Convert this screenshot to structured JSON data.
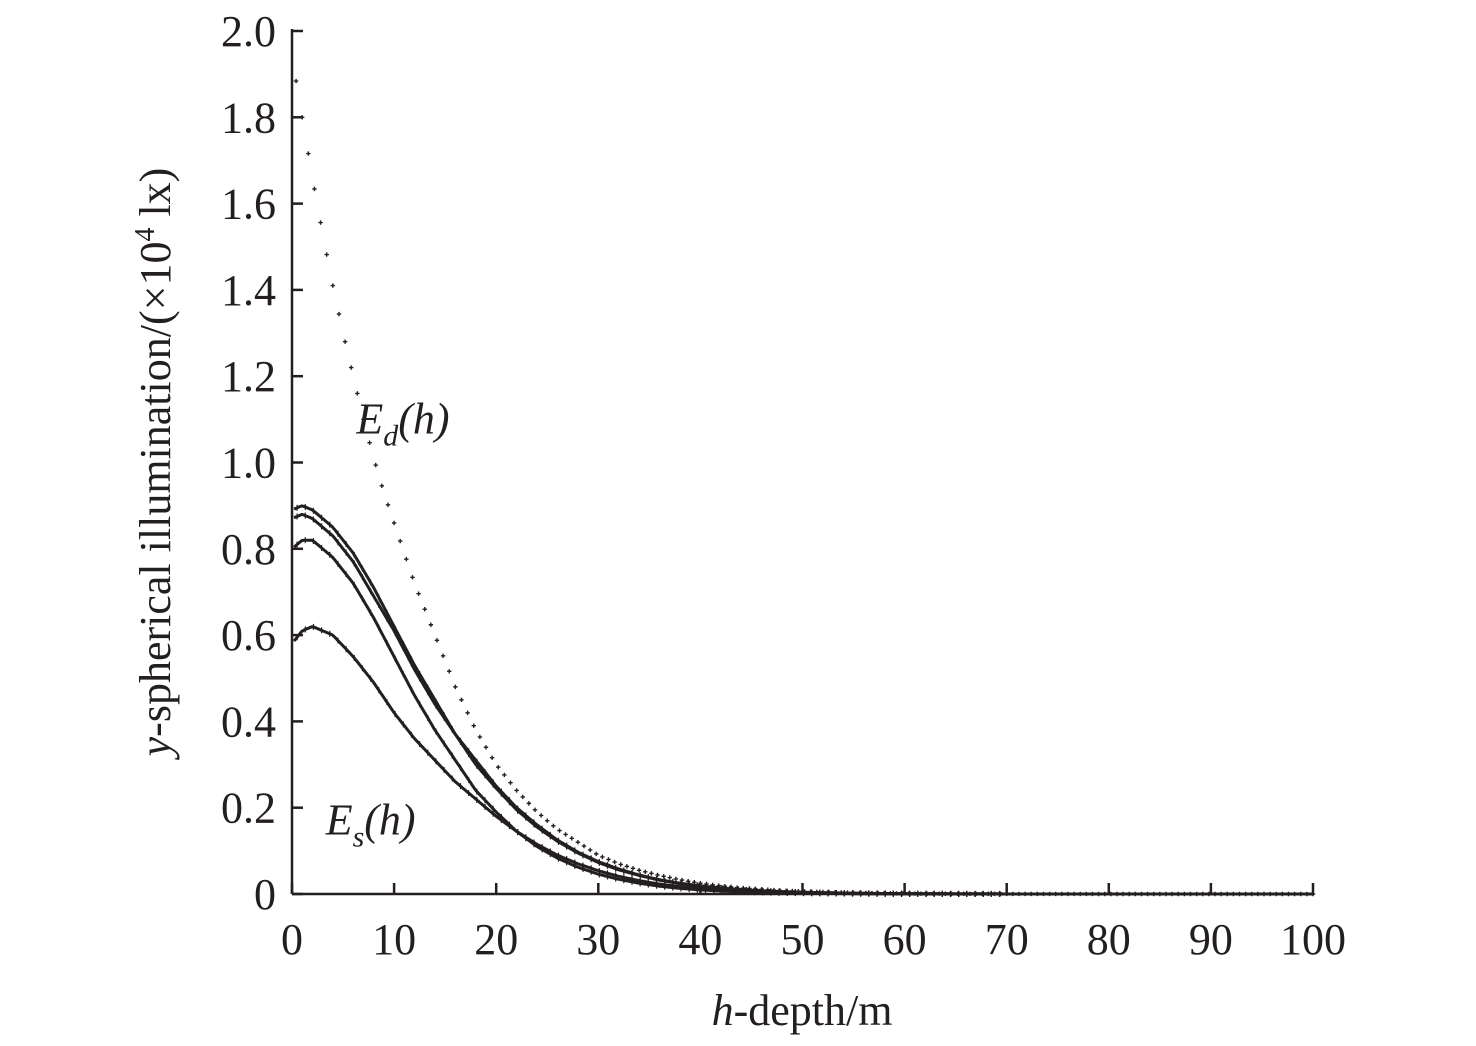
{
  "chart_data": {
    "type": "scatter",
    "title": "",
    "xlabel": {
      "italic": "h",
      "rest": "-depth/m"
    },
    "ylabel": {
      "italic": "y",
      "rest": "-spherical illumination/(×10",
      "sup": "4",
      "unit": " lx)"
    },
    "xlim": [
      0,
      100
    ],
    "ylim": [
      0,
      2.0
    ],
    "xticks": [
      "0",
      "10",
      "20",
      "30",
      "40",
      "50",
      "60",
      "70",
      "80",
      "90",
      "100"
    ],
    "yticks": [
      "0",
      "0.2",
      "0.4",
      "0.6",
      "0.8",
      "1.0",
      "1.2",
      "1.4",
      "1.6",
      "1.8",
      "2.0"
    ],
    "grid": false,
    "annotations": [
      {
        "main": "E",
        "sub": "d",
        "rest": "(h)",
        "x": 6.3,
        "y": 1.1
      },
      {
        "main": "E",
        "sub": "s",
        "rest": "(h)",
        "x": 3.3,
        "y": 0.17
      }
    ],
    "series": [
      {
        "marker": "+",
        "x": [
          0,
          1,
          2,
          3,
          4,
          5,
          6,
          7,
          8,
          9,
          10,
          11,
          12,
          13,
          14,
          15,
          16,
          17,
          18,
          19,
          20,
          22,
          24,
          26,
          28,
          30,
          32,
          34,
          36,
          38,
          40,
          42,
          44,
          46,
          48,
          50,
          55,
          60,
          65,
          70,
          75,
          80,
          85,
          90,
          95,
          100
        ],
        "y": [
          1.94,
          1.8,
          1.66,
          1.53,
          1.41,
          1.3,
          1.2,
          1.1,
          1.01,
          0.93,
          0.86,
          0.79,
          0.72,
          0.66,
          0.6,
          0.54,
          0.48,
          0.43,
          0.38,
          0.34,
          0.3,
          0.24,
          0.19,
          0.15,
          0.12,
          0.09,
          0.07,
          0.055,
          0.043,
          0.033,
          0.025,
          0.019,
          0.014,
          0.011,
          0.008,
          0.006,
          0.003,
          0.001,
          0.0005,
          0.0002,
          0.0001,
          0,
          0,
          0,
          0,
          0
        ]
      },
      {
        "marker": "line",
        "x": [
          0,
          1,
          2,
          4,
          6,
          8,
          10,
          12,
          14,
          16,
          18,
          20,
          22,
          24,
          26,
          28,
          30,
          32,
          34,
          36,
          38,
          40,
          42,
          44,
          46,
          48,
          50,
          55,
          60,
          65,
          70,
          80,
          90,
          100
        ],
        "y": [
          0.89,
          0.9,
          0.89,
          0.85,
          0.79,
          0.71,
          0.62,
          0.53,
          0.45,
          0.37,
          0.31,
          0.25,
          0.2,
          0.16,
          0.125,
          0.097,
          0.075,
          0.058,
          0.044,
          0.033,
          0.025,
          0.019,
          0.014,
          0.01,
          0.0075,
          0.0055,
          0.004,
          0.0018,
          0.0008,
          0.0003,
          0.0001,
          0,
          0,
          0
        ]
      },
      {
        "marker": "line",
        "x": [
          0,
          1,
          2,
          4,
          6,
          8,
          10,
          12,
          14,
          16,
          18,
          20,
          22,
          24,
          26,
          28,
          30,
          32,
          34,
          36,
          38,
          40,
          42,
          44,
          46,
          48,
          50,
          55,
          60,
          65,
          70,
          80,
          90,
          100
        ],
        "y": [
          0.87,
          0.88,
          0.87,
          0.83,
          0.77,
          0.69,
          0.61,
          0.52,
          0.44,
          0.37,
          0.3,
          0.245,
          0.195,
          0.155,
          0.122,
          0.095,
          0.073,
          0.056,
          0.043,
          0.032,
          0.024,
          0.018,
          0.013,
          0.0095,
          0.007,
          0.005,
          0.0037,
          0.0016,
          0.0007,
          0.0003,
          0.0001,
          0,
          0,
          0
        ]
      },
      {
        "marker": "line",
        "x": [
          0,
          1,
          2,
          4,
          6,
          8,
          10,
          12,
          14,
          16,
          18,
          20,
          22,
          24,
          26,
          28,
          30,
          32,
          34,
          36,
          38,
          40,
          42,
          44,
          46,
          48,
          50,
          55,
          60,
          65,
          70,
          80,
          90,
          100
        ],
        "y": [
          0.8,
          0.82,
          0.82,
          0.78,
          0.72,
          0.64,
          0.55,
          0.46,
          0.38,
          0.31,
          0.24,
          0.19,
          0.145,
          0.11,
          0.083,
          0.062,
          0.046,
          0.034,
          0.025,
          0.018,
          0.013,
          0.0095,
          0.007,
          0.005,
          0.0035,
          0.0025,
          0.0018,
          0.0008,
          0.0003,
          0.0001,
          0,
          0,
          0,
          0
        ]
      },
      {
        "marker": "line",
        "x": [
          0,
          1,
          2,
          4,
          6,
          8,
          10,
          12,
          14,
          16,
          18,
          20,
          22,
          24,
          26,
          28,
          30,
          32,
          34,
          36,
          38,
          40,
          42,
          44,
          46,
          48,
          50,
          55,
          60,
          65,
          70,
          80,
          90,
          100
        ],
        "y": [
          0.58,
          0.61,
          0.62,
          0.6,
          0.55,
          0.49,
          0.42,
          0.36,
          0.31,
          0.26,
          0.22,
          0.18,
          0.145,
          0.115,
          0.09,
          0.07,
          0.054,
          0.041,
          0.031,
          0.023,
          0.017,
          0.0125,
          0.009,
          0.0065,
          0.0047,
          0.0034,
          0.0024,
          0.001,
          0.0004,
          0.0002,
          0.0001,
          0,
          0,
          0
        ]
      }
    ]
  }
}
